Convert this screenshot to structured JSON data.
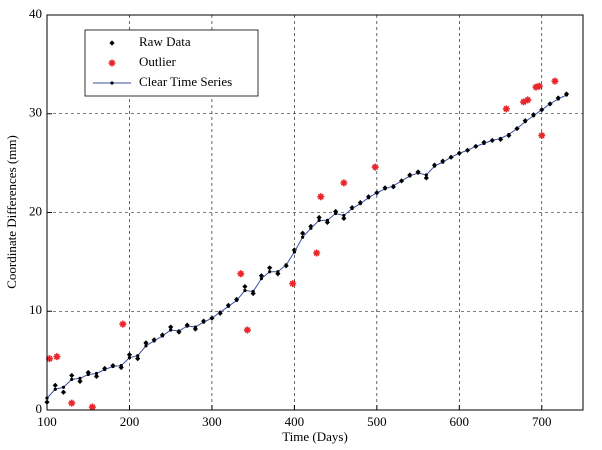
{
  "chart_data": {
    "type": "scatter",
    "xlabel": "Time (Days)",
    "ylabel": "Coordinate Differences (mm)",
    "xlim": [
      100,
      750
    ],
    "ylim": [
      0,
      40
    ],
    "xticks": [
      100,
      200,
      300,
      400,
      500,
      600,
      700
    ],
    "yticks": [
      0,
      10,
      20,
      30,
      40
    ],
    "grid": true,
    "legend": "upper left",
    "series": [
      {
        "name": "Raw Data",
        "color": "#000000",
        "marker": "diamond",
        "line": false,
        "x": [
          100,
          110,
          120,
          130,
          140,
          150,
          160,
          170,
          180,
          190,
          200,
          210,
          220,
          230,
          240,
          250,
          260,
          270,
          280,
          290,
          300,
          310,
          320,
          330,
          340,
          350,
          360,
          370,
          380,
          390,
          400,
          410,
          420,
          430,
          440,
          450,
          460,
          470,
          480,
          490,
          500,
          510,
          520,
          530,
          540,
          550,
          560,
          570,
          580,
          590,
          600,
          610,
          620,
          630,
          640,
          650,
          660,
          670,
          680,
          690,
          700,
          710,
          720,
          730
        ],
        "values": [
          0.8,
          2.5,
          1.8,
          3.5,
          2.9,
          3.8,
          3.4,
          4.2,
          4.5,
          4.3,
          5.6,
          5.2,
          6.8,
          7.1,
          7.6,
          8.4,
          7.9,
          8.6,
          8.2,
          9.0,
          9.3,
          9.8,
          10.6,
          11.2,
          12.5,
          11.8,
          13.6,
          14.4,
          13.8,
          14.6,
          16.2,
          17.9,
          18.6,
          19.5,
          19.0,
          20.1,
          19.4,
          20.5,
          21.0,
          21.6,
          22.0,
          22.5,
          22.6,
          23.2,
          23.8,
          24.1,
          23.5,
          24.8,
          25.2,
          25.6,
          26.0,
          26.3,
          26.7,
          27.1,
          27.3,
          27.4,
          27.8,
          28.5,
          29.3,
          29.9,
          30.4,
          31.0,
          31.6,
          32.0
        ]
      },
      {
        "name": "Outlier",
        "color": "#e8262a",
        "marker": "star",
        "line": false,
        "x": [
          103,
          112,
          130,
          155,
          192,
          335,
          343,
          398,
          427,
          432,
          460,
          498,
          657,
          678,
          683,
          693,
          697,
          700,
          716
        ],
        "values": [
          5.2,
          5.4,
          0.7,
          0.3,
          8.7,
          13.8,
          8.1,
          12.8,
          15.9,
          21.6,
          23.0,
          24.6,
          30.5,
          31.2,
          31.4,
          32.7,
          32.8,
          27.8,
          33.3
        ]
      },
      {
        "name": "Clear Time Series",
        "color": "#3a4fa8",
        "marker": "dot",
        "line": true,
        "x": [
          100,
          110,
          120,
          130,
          140,
          150,
          160,
          170,
          180,
          190,
          200,
          210,
          220,
          230,
          240,
          250,
          260,
          270,
          280,
          290,
          300,
          310,
          320,
          330,
          340,
          350,
          360,
          370,
          380,
          390,
          400,
          410,
          420,
          430,
          440,
          450,
          460,
          470,
          480,
          490,
          500,
          510,
          520,
          530,
          540,
          550,
          560,
          570,
          580,
          590,
          600,
          610,
          620,
          630,
          640,
          650,
          660,
          670,
          680,
          690,
          700,
          710,
          720,
          730
        ],
        "values": [
          1.2,
          2.1,
          2.3,
          3.1,
          3.2,
          3.6,
          3.7,
          4.1,
          4.4,
          4.5,
          5.3,
          5.5,
          6.5,
          7.0,
          7.5,
          8.1,
          8.0,
          8.5,
          8.4,
          8.9,
          9.3,
          9.9,
          10.5,
          11.1,
          12.1,
          12.0,
          13.3,
          14.0,
          14.0,
          14.7,
          16.0,
          17.5,
          18.4,
          19.2,
          19.2,
          19.9,
          19.7,
          20.4,
          20.9,
          21.5,
          22.0,
          22.4,
          22.7,
          23.2,
          23.7,
          24.0,
          23.8,
          24.7,
          25.1,
          25.6,
          26.0,
          26.3,
          26.7,
          27.0,
          27.3,
          27.5,
          27.9,
          28.5,
          29.2,
          29.8,
          30.4,
          31.0,
          31.5,
          31.9
        ]
      }
    ]
  }
}
